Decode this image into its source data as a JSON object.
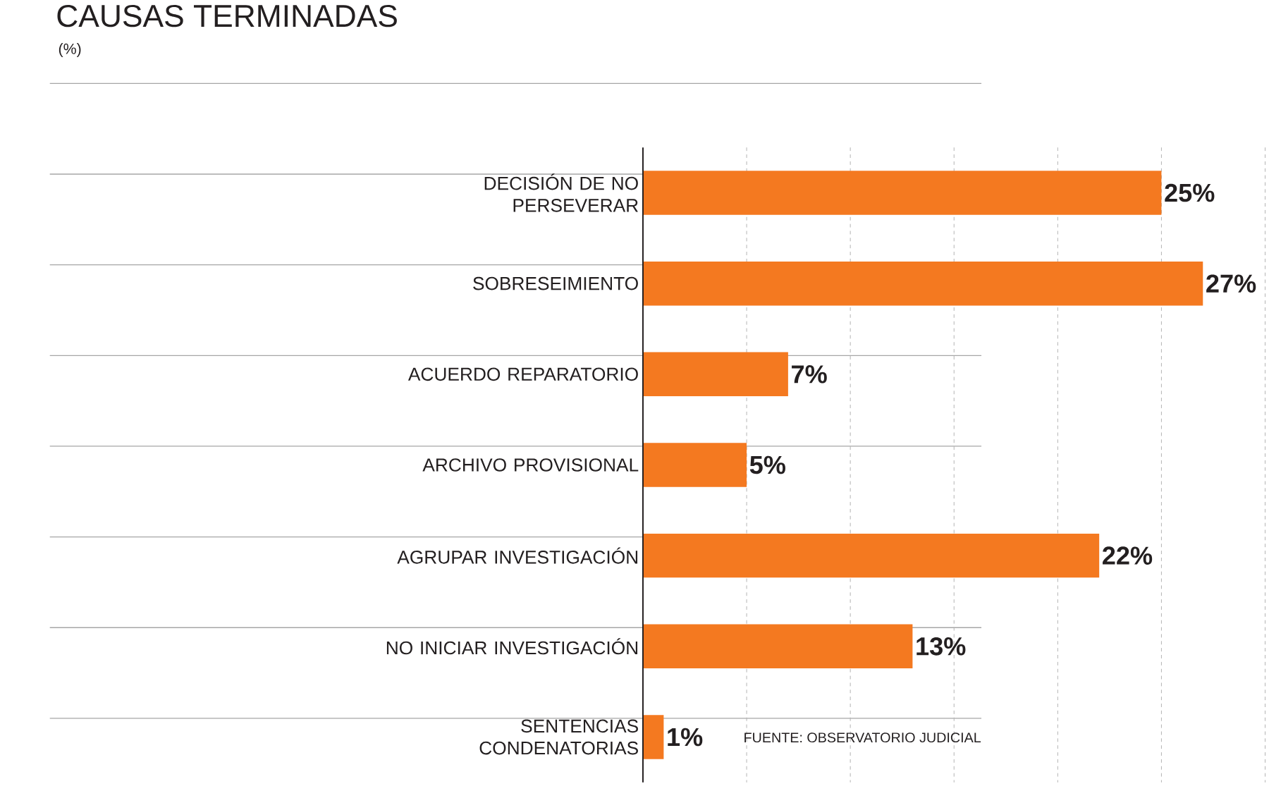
{
  "chart_data": {
    "type": "bar",
    "orientation": "horizontal",
    "title": "CAUSAS TERMINADAS",
    "subtitle": "(%)",
    "categories": [
      "DECISIÓN DE NO PERSEVERAR",
      "SOBRESEIMIENTO",
      "ACUERDO REPARATORIO",
      "ARCHIVO PROVISIONAL",
      "AGRUPAR INVESTIGACIÓN",
      "NO INICIAR INVESTIGACIÓN",
      "SENTENCIAS CONDENATORIAS"
    ],
    "values": [
      25,
      27,
      7,
      5,
      22,
      13,
      1
    ],
    "value_labels": [
      "25%",
      "27%",
      "7%",
      "5%",
      "22%",
      "13%",
      "1%"
    ],
    "color": "#f47920",
    "xlim": [
      0,
      30
    ],
    "xticks": [
      {
        "value": 0,
        "label": null
      },
      {
        "value": 5,
        "label": null
      },
      {
        "value": 10,
        "label": null
      },
      {
        "value": 15,
        "label": null
      },
      {
        "value": 20,
        "label": null
      },
      {
        "value": 25,
        "label": null
      },
      {
        "value": 30,
        "label": null
      }
    ],
    "grid": "x",
    "tick_labels": "y",
    "annotations": [
      "FUENTE: OBSERVATORIO JUDICIAL"
    ]
  }
}
